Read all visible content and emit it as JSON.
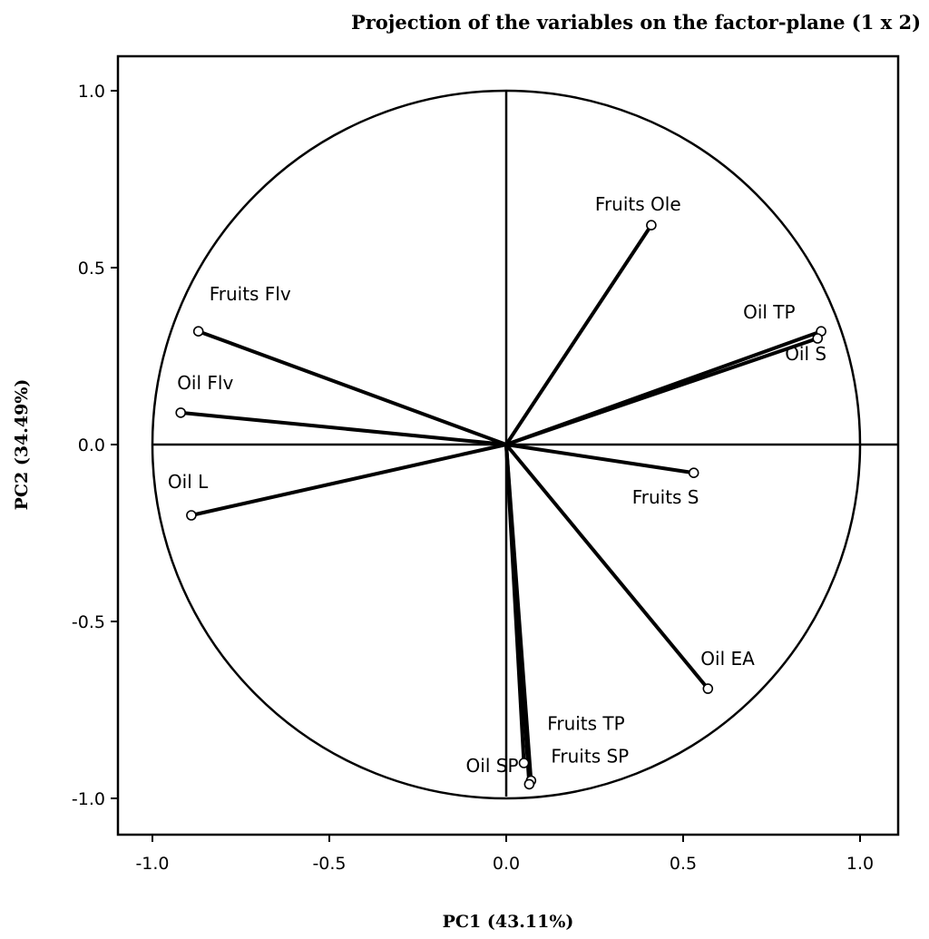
{
  "chart_data": {
    "type": "scatter",
    "title": "Projection of the variables on the factor-plane (1 x 2)",
    "xlabel": "PC1 (43.11%)",
    "ylabel": "PC2 (34.49%)",
    "xlim": [
      -1.1,
      1.1
    ],
    "ylim": [
      -1.1,
      1.1
    ],
    "x_ticks": [
      "-1.0",
      "-0.5",
      "0.0",
      "0.5",
      "1.0"
    ],
    "y_ticks": [
      "1.0",
      "0.5",
      "0.0",
      "-0.5",
      "-1.0"
    ],
    "unit_circle": true,
    "grid": false,
    "points": [
      {
        "label": "Fruits Ole",
        "x": 0.41,
        "y": 0.62
      },
      {
        "label": "Oil TP",
        "x": 0.89,
        "y": 0.32
      },
      {
        "label": "Oil S",
        "x": 0.88,
        "y": 0.3
      },
      {
        "label": "Fruits Flv",
        "x": -0.87,
        "y": 0.32
      },
      {
        "label": "Oil Flv",
        "x": -0.92,
        "y": 0.09
      },
      {
        "label": "Oil L",
        "x": -0.89,
        "y": -0.2
      },
      {
        "label": "Fruits S",
        "x": 0.53,
        "y": -0.08
      },
      {
        "label": "Oil EA",
        "x": 0.57,
        "y": -0.69
      },
      {
        "label": "Fruits TP",
        "x": 0.07,
        "y": -0.95
      },
      {
        "label": "Fruits SP",
        "x": 0.065,
        "y": -0.96
      },
      {
        "label": "Oil SP",
        "x": 0.05,
        "y": -0.9
      }
    ]
  }
}
